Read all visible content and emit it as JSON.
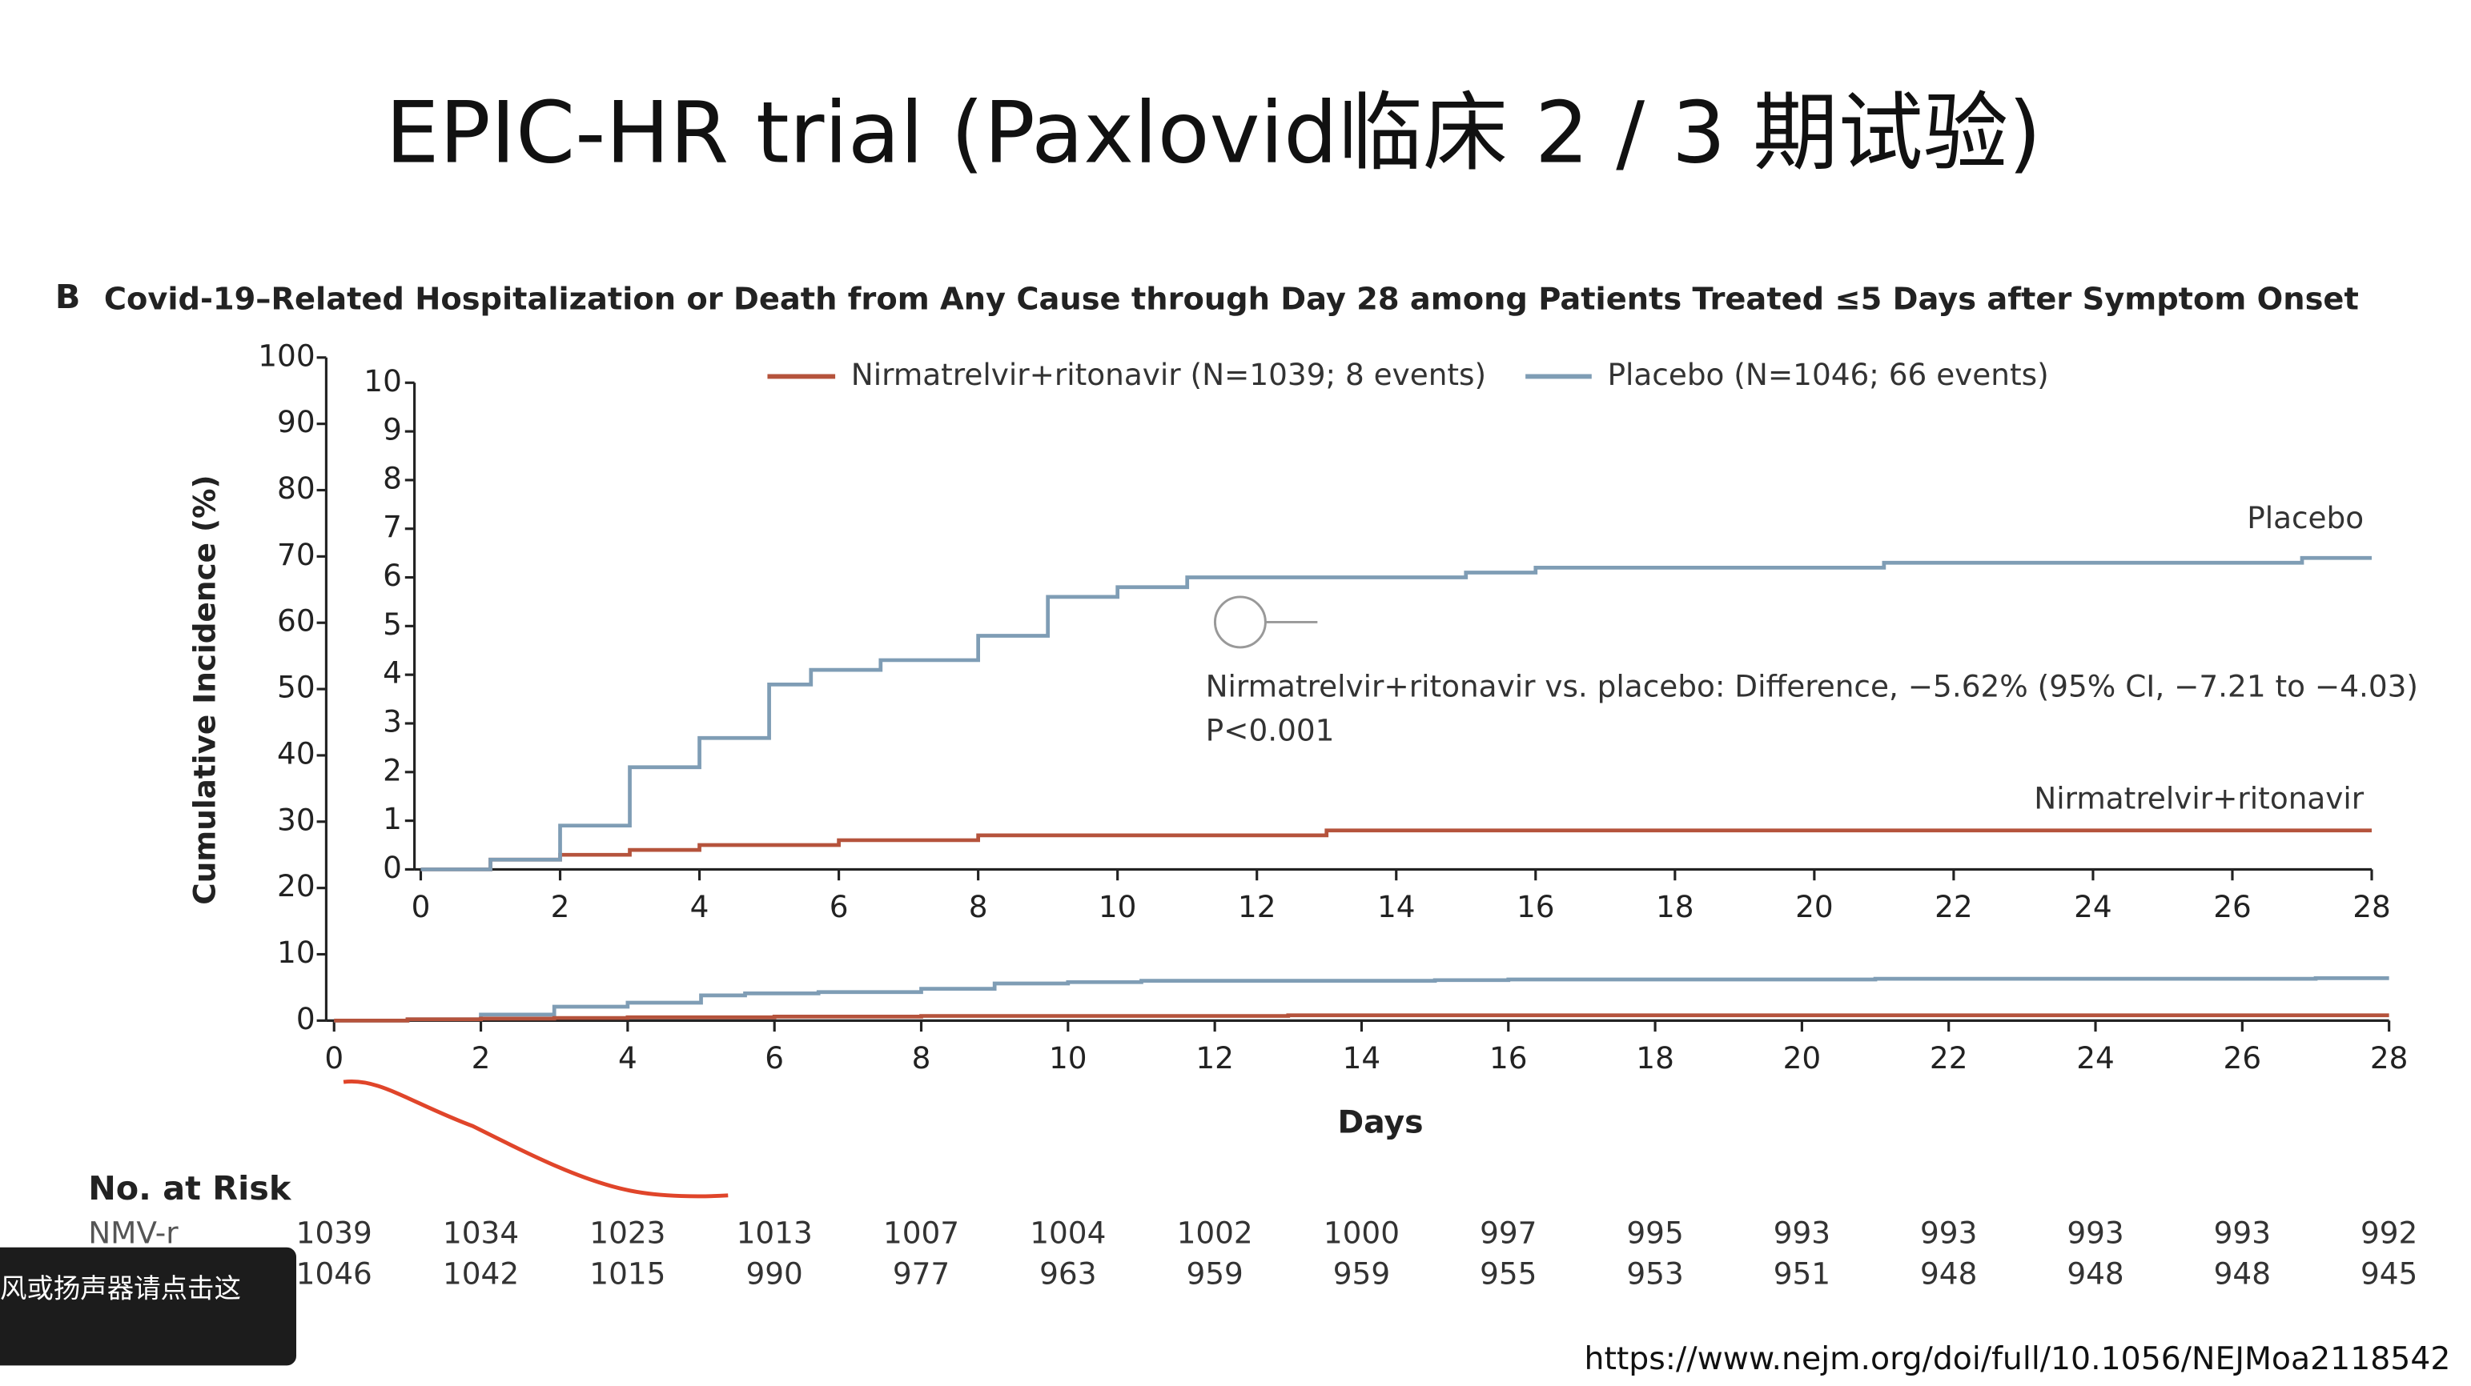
{
  "slide": {
    "title": "EPIC-HR trial (Paxlovid临床 2 / 3 期试验)",
    "url": "https://www.nejm.org/doi/full/10.1056/NEJMoa2118542",
    "popup": "风或扬声器请点击这"
  },
  "chart_data": [
    {
      "type": "step",
      "panel_label": "B",
      "title": "Covid-19–Related Hospitalization or Death from Any Cause through Day 28 among Patients Treated ≤5 Days after Symptom Onset",
      "x_label": "Days",
      "y_label": "Cumulative Incidence (%)",
      "xlim": [
        0,
        28
      ],
      "ylim": [
        0,
        100
      ],
      "xticks": [
        0,
        2,
        4,
        6,
        8,
        10,
        12,
        14,
        16,
        18,
        20,
        22,
        24,
        26,
        28
      ],
      "yticks": [
        0,
        10,
        20,
        30,
        40,
        50,
        60,
        70,
        80,
        90,
        100
      ],
      "series": [
        {
          "color": "#7f9db5",
          "x": [
            0,
            1,
            2,
            3,
            4,
            5,
            5.6,
            6.6,
            8,
            9,
            10,
            11,
            15,
            16,
            21,
            27,
            28
          ],
          "values": [
            0,
            0.2,
            0.9,
            2.1,
            2.7,
            3.8,
            4.1,
            4.3,
            4.8,
            5.6,
            5.8,
            6.0,
            6.1,
            6.2,
            6.3,
            6.4,
            6.4
          ]
        },
        {
          "color": "#b5533c",
          "x": [
            0,
            1,
            2,
            3,
            4,
            6,
            8,
            13,
            28
          ],
          "values": [
            0,
            0.2,
            0.3,
            0.4,
            0.5,
            0.6,
            0.7,
            0.8,
            0.8
          ]
        }
      ]
    },
    {
      "type": "step",
      "xlim": [
        0,
        28
      ],
      "ylim": [
        0,
        10
      ],
      "xticks": [
        0,
        2,
        4,
        6,
        8,
        10,
        12,
        14,
        16,
        18,
        20,
        22,
        24,
        26,
        28
      ],
      "yticks": [
        0,
        1,
        2,
        3,
        4,
        5,
        6,
        7,
        8,
        9,
        10
      ],
      "series": [
        {
          "name": "Nirmatrelvir+ritonavir (N=1039; 8 events)",
          "color": "#b5533c",
          "x": [
            0,
            1,
            2,
            3,
            4,
            6,
            8,
            13,
            28
          ],
          "values": [
            0,
            0.2,
            0.3,
            0.4,
            0.5,
            0.6,
            0.7,
            0.8,
            0.8
          ]
        },
        {
          "name": "Placebo (N=1046; 66 events)",
          "color": "#7f9db5",
          "x": [
            0,
            1,
            2,
            3,
            4,
            5,
            5.6,
            6.6,
            8,
            9,
            10,
            11,
            15,
            16,
            21,
            27,
            28
          ],
          "values": [
            0,
            0.2,
            0.9,
            2.1,
            2.7,
            3.8,
            4.1,
            4.3,
            4.8,
            5.6,
            5.8,
            6.0,
            6.1,
            6.2,
            6.3,
            6.4,
            6.4
          ]
        }
      ],
      "annotations": [
        "Placebo",
        "Nirmatrelvir+ritonavir",
        "Nirmatrelvir+ritonavir vs. placebo: Difference, −5.62% (95% CI, −7.21 to −4.03)",
        "P<0.001"
      ]
    }
  ],
  "risk_table": {
    "title": "No. at Risk",
    "rows": [
      {
        "label": "NMV-r",
        "values": [
          1039,
          1034,
          1023,
          1013,
          1007,
          1004,
          1002,
          1000,
          997,
          995,
          993,
          993,
          993,
          993,
          992
        ]
      },
      {
        "values": [
          1046,
          1042,
          1015,
          990,
          977,
          963,
          959,
          959,
          955,
          953,
          951,
          948,
          948,
          948,
          945
        ]
      }
    ]
  }
}
